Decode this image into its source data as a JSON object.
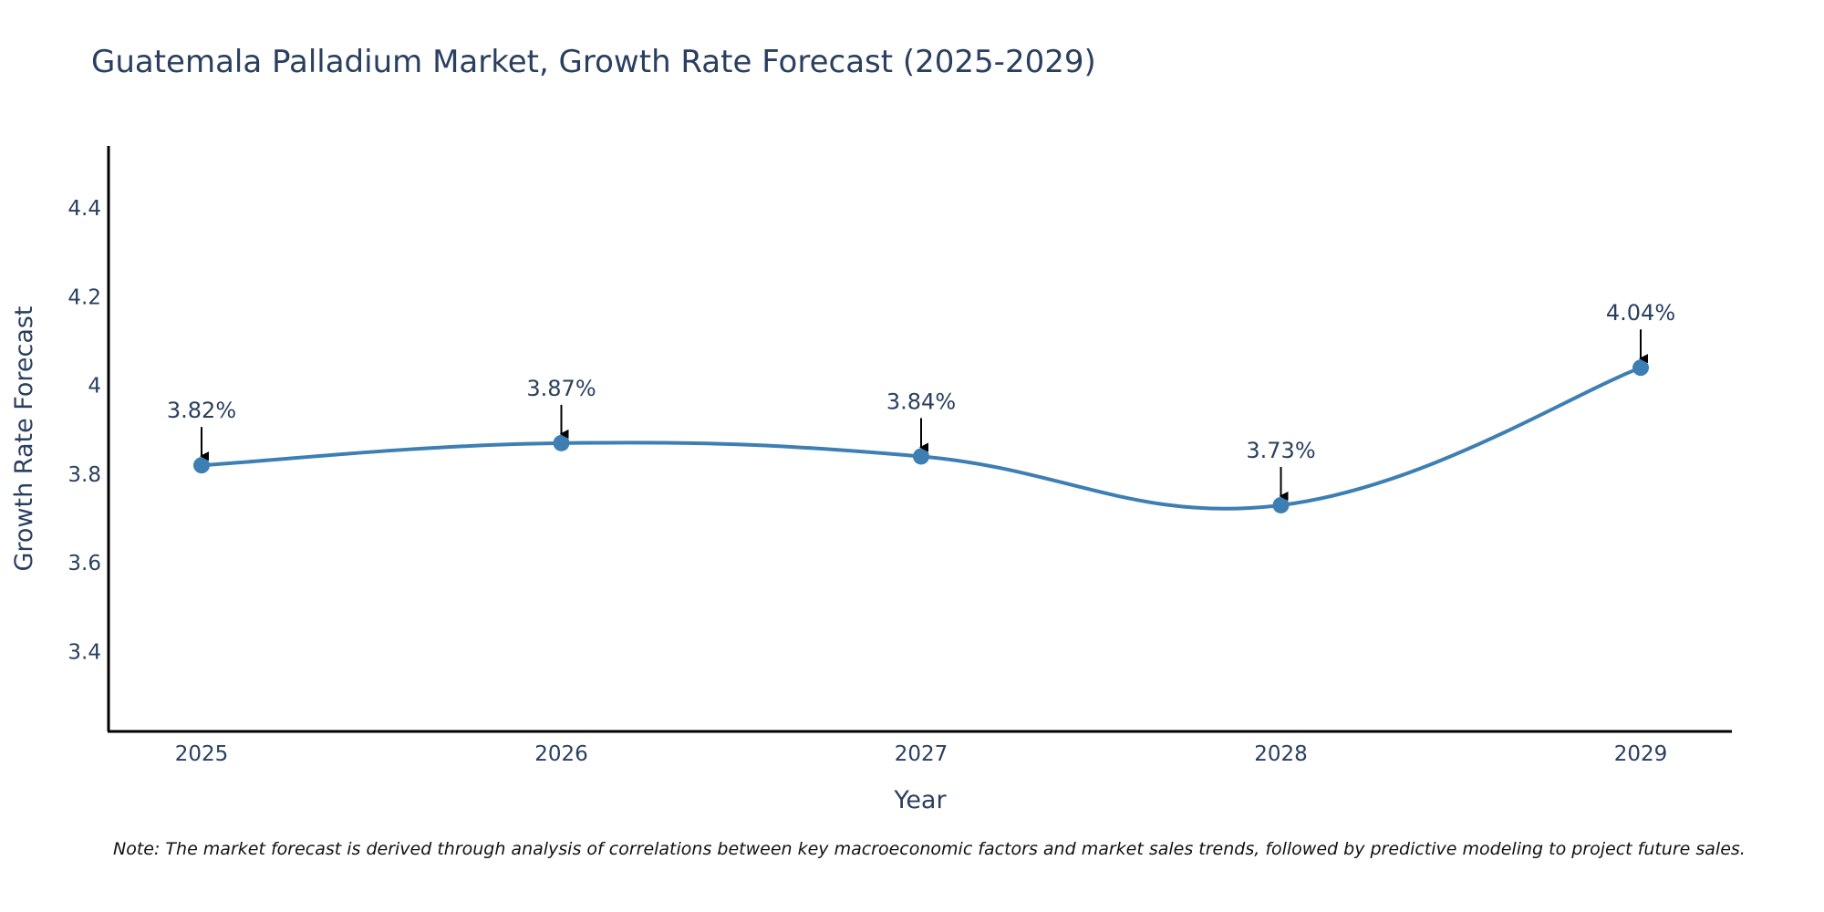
{
  "chart_data": {
    "type": "line",
    "title": "Guatemala Palladium Market, Growth Rate Forecast (2025-2029)",
    "xlabel": "Year",
    "ylabel": "Growth Rate Forecast",
    "categories": [
      "2025",
      "2026",
      "2027",
      "2028",
      "2029"
    ],
    "values": [
      3.82,
      3.87,
      3.84,
      3.73,
      4.04
    ],
    "data_labels": [
      "3.82%",
      "3.87%",
      "3.84%",
      "3.73%",
      "4.04%"
    ],
    "ylim": [
      3.22,
      4.54
    ],
    "yticks": [
      3.4,
      3.6,
      3.8,
      4.0,
      4.2,
      4.4
    ],
    "ytick_labels": [
      "3.4",
      "3.6",
      "3.8",
      "4",
      "4.2",
      "4.4"
    ],
    "grid": false,
    "line_color": "#3d7fb3",
    "marker_color": "#3d7fb3",
    "text_color": "#2a3f5f"
  },
  "note": "Note: The market forecast is derived through analysis of correlations between key macroeconomic factors and market sales trends, followed by predictive modeling to project future sales."
}
